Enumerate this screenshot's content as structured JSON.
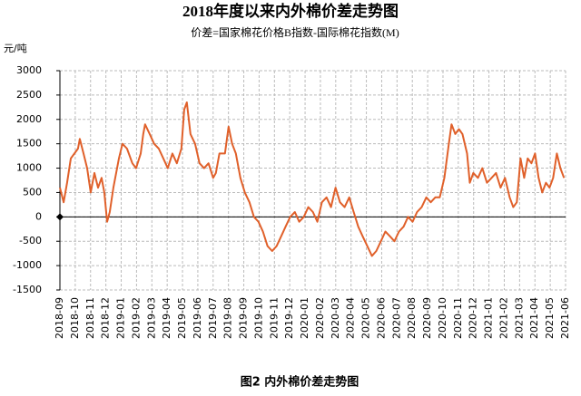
{
  "chart_data": {
    "type": "line",
    "title": "2018年度以来内外棉价差走势图",
    "subtitle": "价差=国家棉花价格B指数-国际棉花指数(M)",
    "y_label": "元/吨",
    "caption": "图2  内外棉价差走势图",
    "grid": true,
    "xlim": [
      0,
      33
    ],
    "xticks": [
      {
        "value": 0,
        "label": "2018-09"
      },
      {
        "value": 1,
        "label": "2018-10"
      },
      {
        "value": 2,
        "label": "2018-11"
      },
      {
        "value": 3,
        "label": "2018-12"
      },
      {
        "value": 4,
        "label": "2019-01"
      },
      {
        "value": 5,
        "label": "2019-02"
      },
      {
        "value": 6,
        "label": "2019-03"
      },
      {
        "value": 7,
        "label": "2019-04"
      },
      {
        "value": 8,
        "label": "2019-05"
      },
      {
        "value": 9,
        "label": "2019-06"
      },
      {
        "value": 10,
        "label": "2019-07"
      },
      {
        "value": 11,
        "label": "2019-08"
      },
      {
        "value": 12,
        "label": "2019-09"
      },
      {
        "value": 13,
        "label": "2019-10"
      },
      {
        "value": 14,
        "label": "2019-11"
      },
      {
        "value": 15,
        "label": "2019-12"
      },
      {
        "value": 16,
        "label": "2020-01"
      },
      {
        "value": 17,
        "label": "2020-02"
      },
      {
        "value": 18,
        "label": "2020-03"
      },
      {
        "value": 19,
        "label": "2020-04"
      },
      {
        "value": 20,
        "label": "2020-05"
      },
      {
        "value": 21,
        "label": "2020-06"
      },
      {
        "value": 22,
        "label": "2020-07"
      },
      {
        "value": 23,
        "label": "2020-08"
      },
      {
        "value": 24,
        "label": "2020-09"
      },
      {
        "value": 25,
        "label": "2020-10"
      },
      {
        "value": 26,
        "label": "2020-11"
      },
      {
        "value": 27,
        "label": "2020-12"
      },
      {
        "value": 28,
        "label": "2021-01"
      },
      {
        "value": 29,
        "label": "2021-02"
      },
      {
        "value": 30,
        "label": "2021-03"
      },
      {
        "value": 31,
        "label": "2021-04"
      },
      {
        "value": 32,
        "label": "2021-05"
      },
      {
        "value": 33,
        "label": "2021-06"
      }
    ],
    "ylim": [
      -1500,
      3000
    ],
    "yticks": [
      -1500,
      -1000,
      -500,
      0,
      500,
      1000,
      1500,
      2000,
      2500,
      3000
    ],
    "series": [
      {
        "color": "#E0602A",
        "x": [
          0,
          0.24,
          0.47,
          0.71,
          0.95,
          1.18,
          1.3,
          1.54,
          1.78,
          2.01,
          2.25,
          2.49,
          2.72,
          2.9,
          3.08,
          3.25,
          3.49,
          3.85,
          4.08,
          4.38,
          4.73,
          4.97,
          5.27,
          5.44,
          5.56,
          5.86,
          6.15,
          6.45,
          6.75,
          7.04,
          7.34,
          7.63,
          7.93,
          8.11,
          8.28,
          8.52,
          8.82,
          9.11,
          9.41,
          9.7,
          10.0,
          10.18,
          10.41,
          10.77,
          11.01,
          11.24,
          11.48,
          11.78,
          12.07,
          12.37,
          12.66,
          12.96,
          13.25,
          13.55,
          13.85,
          14.14,
          14.44,
          14.73,
          15.03,
          15.33,
          15.62,
          15.92,
          16.21,
          16.51,
          16.8,
          17.1,
          17.4,
          17.69,
          17.99,
          18.28,
          18.58,
          18.88,
          19.17,
          19.47,
          19.76,
          20.06,
          20.36,
          20.65,
          20.95,
          21.24,
          21.54,
          21.83,
          22.13,
          22.43,
          22.72,
          23.02,
          23.31,
          23.61,
          23.91,
          24.2,
          24.5,
          24.79,
          25.09,
          25.38,
          25.56,
          25.8,
          26.04,
          26.27,
          26.57,
          26.75,
          26.98,
          27.28,
          27.57,
          27.87,
          28.17,
          28.46,
          28.76,
          29.05,
          29.35,
          29.59,
          29.82,
          30.06,
          30.3,
          30.53,
          30.77,
          31.01,
          31.24,
          31.48,
          31.72,
          31.95,
          32.19,
          32.43,
          32.66,
          32.9
        ],
        "values": [
          600,
          300,
          700,
          1200,
          1300,
          1400,
          1600,
          1300,
          1000,
          500,
          900,
          600,
          800,
          500,
          -100,
          100,
          600,
          1200,
          1500,
          1400,
          1100,
          1000,
          1300,
          1700,
          1900,
          1700,
          1500,
          1400,
          1200,
          1000,
          1300,
          1100,
          1400,
          2200,
          2350,
          1700,
          1500,
          1100,
          1000,
          1100,
          800,
          900,
          1300,
          1300,
          1850,
          1500,
          1300,
          800,
          500,
          300,
          0,
          -100,
          -300,
          -600,
          -700,
          -600,
          -400,
          -200,
          0,
          100,
          -100,
          0,
          200,
          100,
          -100,
          300,
          400,
          200,
          600,
          300,
          200,
          400,
          100,
          -200,
          -400,
          -600,
          -800,
          -700,
          -500,
          -300,
          -400,
          -500,
          -300,
          -200,
          0,
          -100,
          100,
          200,
          400,
          300,
          400,
          400,
          800,
          1500,
          1900,
          1700,
          1800,
          1700,
          1300,
          700,
          900,
          800,
          1000,
          700,
          800,
          900,
          600,
          800,
          400,
          200,
          300,
          1200,
          800,
          1200,
          1100,
          1300,
          800,
          500,
          700,
          600,
          800,
          1300,
          1000,
          800
        ]
      }
    ]
  }
}
